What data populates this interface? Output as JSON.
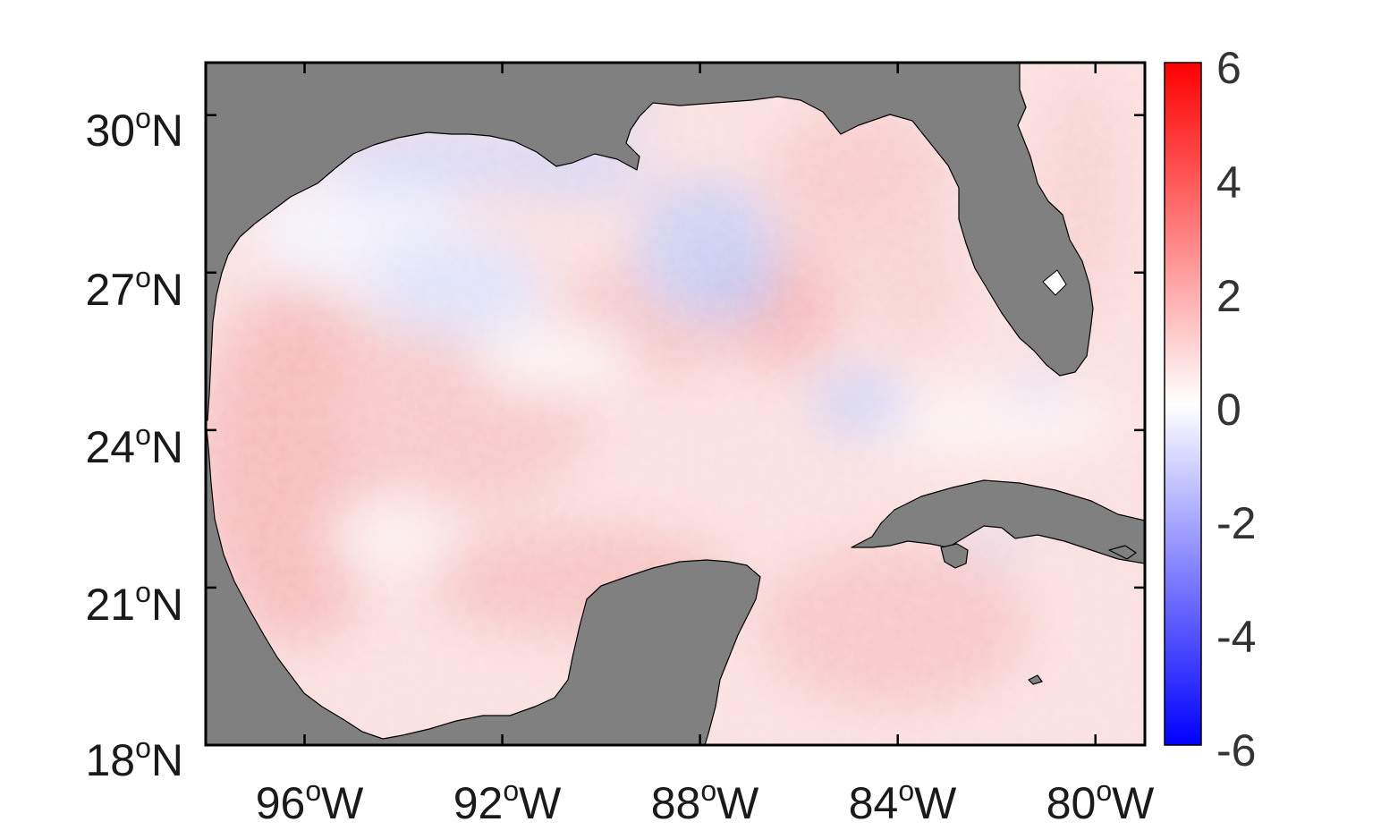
{
  "map": {
    "y_ticks": [
      {
        "deg": "18",
        "hemi": "N",
        "value": 18
      },
      {
        "deg": "21",
        "hemi": "N",
        "value": 21
      },
      {
        "deg": "24",
        "hemi": "N",
        "value": 24
      },
      {
        "deg": "27",
        "hemi": "N",
        "value": 27
      },
      {
        "deg": "30",
        "hemi": "N",
        "value": 30
      }
    ],
    "x_ticks": [
      {
        "deg": "96",
        "hemi": "W",
        "value": -96
      },
      {
        "deg": "92",
        "hemi": "W",
        "value": -92
      },
      {
        "deg": "88",
        "hemi": "W",
        "value": -88
      },
      {
        "deg": "84",
        "hemi": "W",
        "value": -84
      },
      {
        "deg": "80",
        "hemi": "W",
        "value": -80
      }
    ],
    "degree_symbol": "o",
    "lon_range": [
      -98,
      -79
    ],
    "lat_range": [
      18,
      31
    ],
    "land_color": "#808080",
    "field_colormap": "blue-white-red"
  },
  "colorbar": {
    "ticks": [
      "6",
      "4",
      "2",
      "0",
      "-2",
      "-4",
      "-6"
    ],
    "range": [
      -6,
      6
    ],
    "low_color": "#0000ff",
    "mid_color": "#ffffff",
    "high_color": "#ff0000"
  }
}
